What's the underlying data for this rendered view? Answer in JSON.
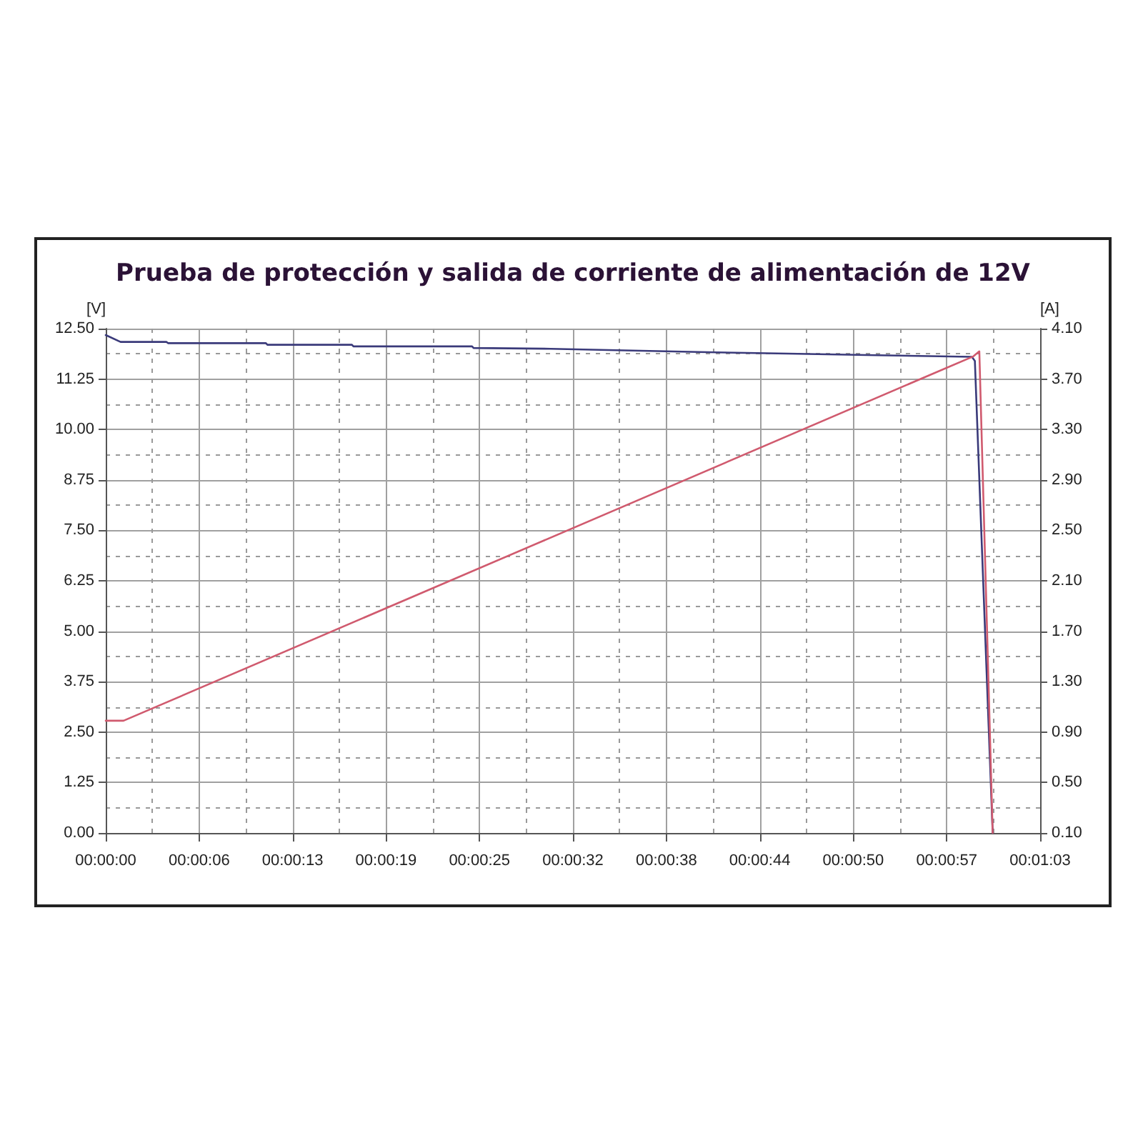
{
  "chart_data": {
    "type": "line",
    "title": "Prueba de protección y salida de corriente de alimentación de 12V",
    "ylabel": "[V]",
    "y2label": "[A]",
    "xlim": [
      0,
      63
    ],
    "xticks": [
      {
        "value": 0,
        "label": "00:00:00"
      },
      {
        "value": 6.3,
        "label": "00:00:06"
      },
      {
        "value": 12.6,
        "label": "00:00:13"
      },
      {
        "value": 18.9,
        "label": "00:00:19"
      },
      {
        "value": 25.2,
        "label": "00:00:25"
      },
      {
        "value": 31.5,
        "label": "00:00:32"
      },
      {
        "value": 37.8,
        "label": "00:00:38"
      },
      {
        "value": 44.1,
        "label": "00:00:44"
      },
      {
        "value": 50.4,
        "label": "00:00:50"
      },
      {
        "value": 56.7,
        "label": "00:00:57"
      },
      {
        "value": 63,
        "label": "00:01:03"
      }
    ],
    "ylim": [
      0,
      12.5
    ],
    "yticks": [
      {
        "value": 0,
        "label": "0.00"
      },
      {
        "value": 1.25,
        "label": "1.25"
      },
      {
        "value": 2.5,
        "label": "2.50"
      },
      {
        "value": 3.75,
        "label": "3.75"
      },
      {
        "value": 5,
        "label": "5.00"
      },
      {
        "value": 6.25,
        "label": "6.25"
      },
      {
        "value": 7.5,
        "label": "7.50"
      },
      {
        "value": 8.75,
        "label": "8.75"
      },
      {
        "value": 10,
        "label": "10.00"
      },
      {
        "value": 11.25,
        "label": "11.25"
      },
      {
        "value": 12.5,
        "label": "12.50"
      }
    ],
    "y2lim": [
      0.1,
      4.1
    ],
    "y2ticks": [
      {
        "value": 0.1,
        "label": "0.10"
      },
      {
        "value": 0.5,
        "label": "0.50"
      },
      {
        "value": 0.9,
        "label": "0.90"
      },
      {
        "value": 1.3,
        "label": "1.30"
      },
      {
        "value": 1.7,
        "label": "1.70"
      },
      {
        "value": 2.1,
        "label": "2.10"
      },
      {
        "value": 2.5,
        "label": "2.50"
      },
      {
        "value": 2.9,
        "label": "2.90"
      },
      {
        "value": 3.3,
        "label": "3.30"
      },
      {
        "value": 3.7,
        "label": "3.70"
      },
      {
        "value": 4.1,
        "label": "4.10"
      }
    ],
    "grid": true,
    "marker": "none",
    "line_style": "solid",
    "series": [
      {
        "color": "#3a3a7a",
        "x": [
          0,
          1.0,
          4.1,
          4.2,
          10.8,
          10.9,
          16.6,
          16.7,
          24.7,
          24.8,
          30,
          35,
          40,
          46,
          52,
          58.4,
          58.6,
          59.8
        ],
        "values": [
          12.34,
          12.17,
          12.17,
          12.14,
          12.14,
          12.1,
          12.1,
          12.06,
          12.06,
          12.02,
          12.0,
          11.96,
          11.92,
          11.88,
          11.84,
          11.8,
          11.7,
          0
        ]
      },
      {
        "color": "#d05a6e",
        "axis": "y2",
        "x": [
          0,
          1.2,
          58.5,
          58.9,
          59.8
        ],
        "values": [
          0.99,
          0.99,
          3.88,
          3.92,
          0.1
        ]
      }
    ]
  }
}
